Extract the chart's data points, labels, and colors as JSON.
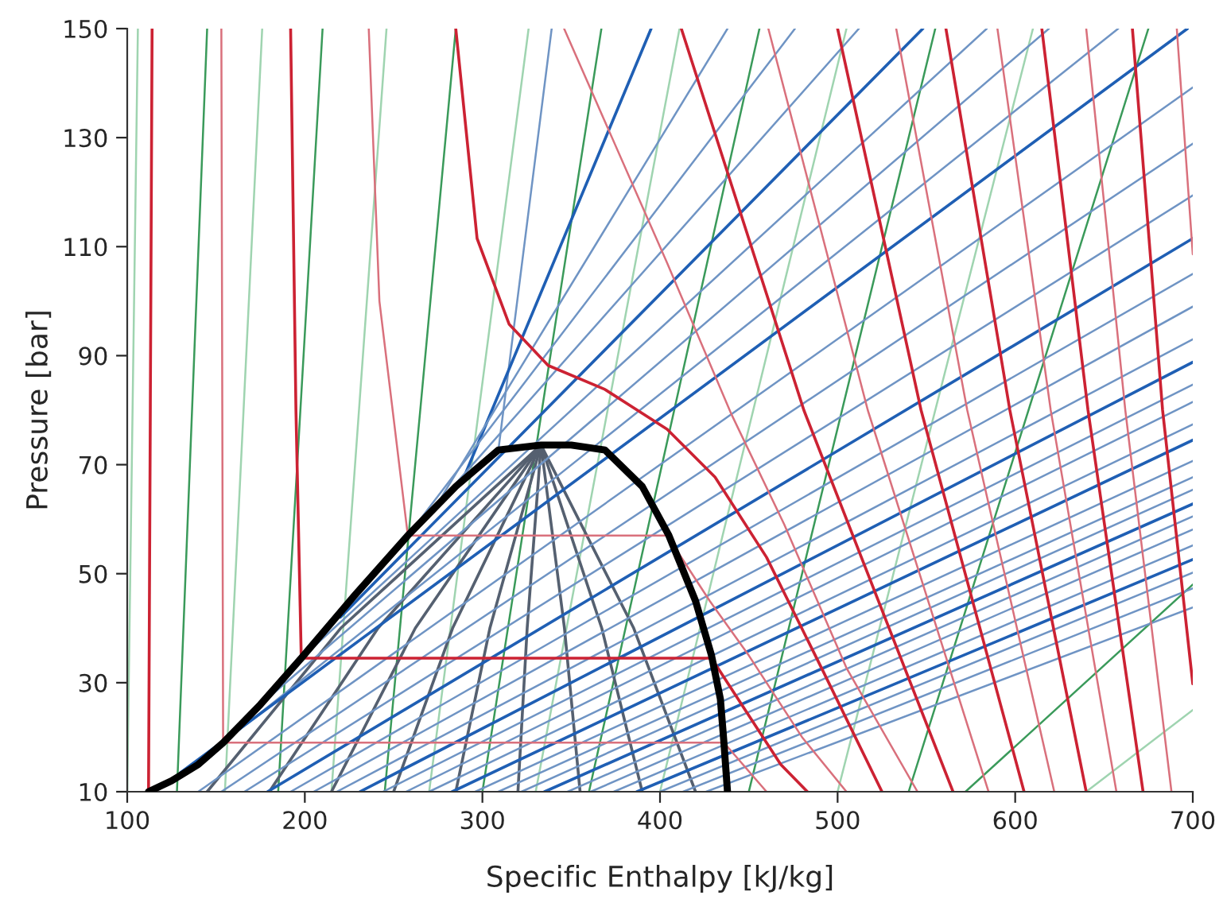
{
  "chart_data": {
    "type": "line",
    "xlabel": "Specific Enthalpy [kJ/kg]",
    "ylabel": "Pressure [bar]",
    "xlim": [
      100,
      700
    ],
    "ylim": [
      10,
      150
    ],
    "xticks": [
      100,
      200,
      300,
      400,
      500,
      600,
      700
    ],
    "yticks": [
      10,
      30,
      50,
      70,
      90,
      110,
      130,
      150
    ],
    "grid": false,
    "line_style": "solid",
    "marker": "none",
    "series": [
      {
        "x": [
          106,
          100
        ],
        "values": [
          150,
          10
        ],
        "color": "#9fd4b0"
      },
      {
        "x": [
          145,
          128
        ],
        "values": [
          150,
          10
        ],
        "color": "#3a9a5a"
      },
      {
        "x": [
          176,
          155
        ],
        "values": [
          150,
          10
        ],
        "color": "#9fd4b0"
      },
      {
        "x": [
          210,
          185
        ],
        "values": [
          150,
          10
        ],
        "color": "#3a9a5a"
      },
      {
        "x": [
          246,
          215
        ],
        "values": [
          150,
          10
        ],
        "color": "#9fd4b0"
      },
      {
        "x": [
          285,
          245
        ],
        "values": [
          150,
          10
        ],
        "color": "#3a9a5a"
      },
      {
        "x": [
          326,
          270
        ],
        "values": [
          150,
          10
        ],
        "color": "#9fd4b0"
      },
      {
        "x": [
          367,
          300
        ],
        "values": [
          150,
          10
        ],
        "color": "#3a9a5a"
      },
      {
        "x": [
          411,
          330
        ],
        "values": [
          150,
          10
        ],
        "color": "#9fd4b0"
      },
      {
        "x": [
          456,
          360
        ],
        "values": [
          150,
          10
        ],
        "color": "#3a9a5a"
      },
      {
        "x": [
          505,
          400
        ],
        "values": [
          150,
          10
        ],
        "color": "#9fd4b0"
      },
      {
        "x": [
          555,
          450
        ],
        "values": [
          150,
          10
        ],
        "color": "#3a9a5a"
      },
      {
        "x": [
          610,
          500
        ],
        "values": [
          150,
          10
        ],
        "color": "#9fd4b0"
      },
      {
        "x": [
          675,
          540
        ],
        "values": [
          150,
          10
        ],
        "color": "#3a9a5a"
      },
      {
        "x": [
          572,
          700
        ],
        "values": [
          10,
          48
        ],
        "color": "#3a9a5a"
      },
      {
        "x": [
          640,
          700
        ],
        "values": [
          10,
          25
        ],
        "color": "#9fd4b0"
      },
      {
        "x": [
          333,
          220.2,
          145
        ],
        "values": [
          73.6,
          40,
          10
        ],
        "color": "#556070"
      },
      {
        "x": [
          333,
          241.2,
          180
        ],
        "values": [
          73.6,
          40,
          10
        ],
        "color": "#556070"
      },
      {
        "x": [
          333,
          262.2,
          215
        ],
        "values": [
          73.6,
          40,
          10
        ],
        "color": "#556070"
      },
      {
        "x": [
          333,
          283.2,
          250
        ],
        "values": [
          73.6,
          40,
          10
        ],
        "color": "#556070"
      },
      {
        "x": [
          333,
          304.2,
          285
        ],
        "values": [
          73.6,
          40,
          10
        ],
        "color": "#556070"
      },
      {
        "x": [
          333,
          325.2,
          320
        ],
        "values": [
          73.6,
          40,
          10
        ],
        "color": "#556070"
      },
      {
        "x": [
          333,
          346.2,
          355
        ],
        "values": [
          73.6,
          40,
          10
        ],
        "color": "#556070"
      },
      {
        "x": [
          333,
          367.2,
          390
        ],
        "values": [
          73.6,
          40,
          10
        ],
        "color": "#556070"
      },
      {
        "x": [
          333,
          385.2,
          420
        ],
        "values": [
          73.6,
          40,
          10
        ],
        "color": "#556070"
      },
      {
        "x": [
          309,
          339
        ],
        "values": [
          72.7,
          150
        ],
        "color": "#6f94c4"
      },
      {
        "x": [
          290,
          395
        ],
        "values": [
          68,
          150
        ],
        "color": "#1f5fb4"
      },
      {
        "x": [
          275,
          438
        ],
        "values": [
          63,
          150
        ],
        "color": "#6f94c4"
      },
      {
        "x": [
          258,
          476
        ],
        "values": [
          57,
          150
        ],
        "color": "#6f94c4"
      },
      {
        "x": [
          240,
          512
        ],
        "values": [
          50,
          150
        ],
        "color": "#6f94c4"
      },
      {
        "x": [
          220,
          548
        ],
        "values": [
          42,
          150
        ],
        "color": "#1f5fb4"
      },
      {
        "x": [
          198,
          584
        ],
        "values": [
          34.5,
          150
        ],
        "color": "#6f94c4"
      },
      {
        "x": [
          175,
          619
        ],
        "values": [
          26,
          150
        ],
        "color": "#6f94c4"
      },
      {
        "x": [
          154,
          658
        ],
        "values": [
          19,
          150
        ],
        "color": "#6f94c4"
      },
      {
        "x": [
          130,
          697
        ],
        "values": [
          13.5,
          150
        ],
        "color": "#1f5fb4"
      },
      {
        "x": [
          140,
          700
        ],
        "values": [
          10,
          139.2
        ],
        "color": "#6f94c4"
      },
      {
        "x": [
          153,
          700
        ],
        "values": [
          10,
          128.9
        ],
        "color": "#6f94c4"
      },
      {
        "x": [
          166,
          700
        ],
        "values": [
          10,
          119.4
        ],
        "color": "#6f94c4"
      },
      {
        "x": [
          179,
          700
        ],
        "values": [
          10,
          111.5
        ],
        "color": "#1f5fb4"
      },
      {
        "x": [
          192,
          700
        ],
        "values": [
          10,
          105
        ],
        "color": "#6f94c4"
      },
      {
        "x": [
          205,
          700
        ],
        "values": [
          10,
          99
        ],
        "color": "#6f94c4"
      },
      {
        "x": [
          218,
          700
        ],
        "values": [
          10,
          93
        ],
        "color": "#6f94c4"
      },
      {
        "x": [
          231,
          700
        ],
        "values": [
          10,
          88.8
        ],
        "color": "#1f5fb4"
      },
      {
        "x": [
          244,
          700
        ],
        "values": [
          10,
          84.7
        ],
        "color": "#6f94c4"
      },
      {
        "x": [
          257,
          700
        ],
        "values": [
          10,
          81.5
        ],
        "color": "#6f94c4"
      },
      {
        "x": [
          270,
          700
        ],
        "values": [
          10,
          77.4
        ],
        "color": "#6f94c4"
      },
      {
        "x": [
          283,
          700
        ],
        "values": [
          10,
          74.5
        ],
        "color": "#1f5fb4"
      },
      {
        "x": [
          296,
          700
        ],
        "values": [
          10,
          70.7
        ],
        "color": "#6f94c4"
      },
      {
        "x": [
          309,
          700
        ],
        "values": [
          10,
          67.7
        ],
        "color": "#6f94c4"
      },
      {
        "x": [
          322,
          700
        ],
        "values": [
          10,
          65.4
        ],
        "color": "#6f94c4"
      },
      {
        "x": [
          335,
          700
        ],
        "values": [
          10,
          62.8
        ],
        "color": "#1f5fb4"
      },
      {
        "x": [
          348,
          700
        ],
        "values": [
          10,
          60.5
        ],
        "color": "#6f94c4"
      },
      {
        "x": [
          361,
          700
        ],
        "values": [
          10,
          58.1
        ],
        "color": "#6f94c4"
      },
      {
        "x": [
          374,
          700
        ],
        "values": [
          10,
          55.2
        ],
        "color": "#6f94c4"
      },
      {
        "x": [
          387,
          700
        ],
        "values": [
          10,
          52.6
        ],
        "color": "#1f5fb4"
      },
      {
        "x": [
          400,
          700
        ],
        "values": [
          10,
          50.2
        ],
        "color": "#6f94c4"
      },
      {
        "x": [
          413,
          700
        ],
        "values": [
          10,
          47.3
        ],
        "color": "#6f94c4"
      },
      {
        "x": [
          426,
          700
        ],
        "values": [
          10,
          43.8
        ],
        "color": "#6f94c4"
      },
      {
        "x": [
          112,
          114
        ],
        "values": [
          10,
          150
        ],
        "color": "#cc2233"
      },
      {
        "x": [
          153,
          154,
          436,
          460
        ],
        "values": [
          150,
          19,
          19,
          10
        ],
        "color": "#d9707c"
      },
      {
        "x": [
          192,
          195,
          198,
          429,
          448,
          468,
          483
        ],
        "values": [
          150,
          80,
          34.5,
          34.5,
          25,
          15,
          10
        ],
        "color": "#cc2233"
      },
      {
        "x": [
          236,
          242,
          258,
          404,
          428,
          450,
          480,
          505
        ],
        "values": [
          150,
          100,
          57,
          57,
          45,
          35,
          20,
          10
        ],
        "color": "#d9707c"
      },
      {
        "x": [
          285,
          297,
          315,
          337,
          369,
          404,
          431,
          460,
          492,
          525
        ],
        "values": [
          150,
          111.5,
          95.8,
          88.2,
          83.8,
          76.5,
          67.7,
          53,
          32,
          10
        ],
        "color": "#cc2233"
      },
      {
        "x": [
          346,
          404,
          440,
          470,
          505,
          545
        ],
        "values": [
          150,
          107,
          79.4,
          59,
          32.7,
          10
        ],
        "color": "#d9707c"
      },
      {
        "x": [
          412,
          481,
          565
        ],
        "values": [
          150,
          80,
          10
        ],
        "color": "#cc2233"
      },
      {
        "x": [
          461,
          517,
          585
        ],
        "values": [
          150,
          80,
          10
        ],
        "color": "#d9707c"
      },
      {
        "x": [
          500,
          547,
          605
        ],
        "values": [
          150,
          80,
          10
        ],
        "color": "#cc2233"
      },
      {
        "x": [
          533,
          573,
          622
        ],
        "values": [
          150,
          80,
          10
        ],
        "color": "#d9707c"
      },
      {
        "x": [
          561,
          597,
          640
        ],
        "values": [
          150,
          80,
          10
        ],
        "color": "#cc2233"
      },
      {
        "x": [
          590,
          620,
          657
        ],
        "values": [
          150,
          80,
          10
        ],
        "color": "#d9707c"
      },
      {
        "x": [
          615,
          641,
          672
        ],
        "values": [
          150,
          80,
          10
        ],
        "color": "#cc2233"
      },
      {
        "x": [
          640,
          662,
          688
        ],
        "values": [
          150,
          80,
          10
        ],
        "color": "#d9707c"
      },
      {
        "x": [
          666,
          683,
          700
        ],
        "values": [
          150,
          80,
          29.8
        ],
        "color": "#cc2233"
      },
      {
        "x": [
          691,
          700
        ],
        "values": [
          150,
          108.6
        ],
        "color": "#d9707c"
      },
      {
        "x": [
          112,
          125,
          140,
          154,
          175,
          198,
          228,
          258,
          285,
          309,
          333,
          350,
          369,
          390,
          405,
          420,
          429,
          434,
          436,
          438
        ],
        "values": [
          10,
          12,
          15,
          19,
          26,
          34.5,
          46,
          57,
          66,
          72.7,
          73.6,
          73.6,
          72.7,
          66,
          57,
          45,
          35,
          27,
          19,
          10
        ],
        "color": "#000000"
      }
    ]
  }
}
